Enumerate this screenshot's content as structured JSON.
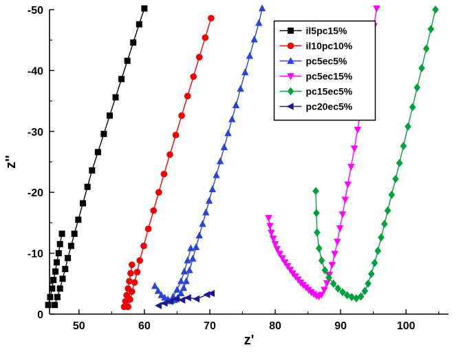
{
  "figure": {
    "background": "#ffffff",
    "axis_color": "#000000"
  },
  "chart_data": {
    "type": "line",
    "title": "",
    "xlabel": "z'",
    "ylabel": "z''",
    "xlim": [
      45.5,
      106.5
    ],
    "ylim": [
      0,
      -50
    ],
    "x_ticks": [
      50,
      60,
      70,
      80,
      90,
      100
    ],
    "y_ticks": [
      0,
      -10,
      -20,
      -30,
      -40,
      -50
    ],
    "x_minor_ticks": [
      55,
      65,
      75,
      85,
      95,
      105
    ],
    "y_minor_ticks": [
      -5,
      -15,
      -25,
      -35,
      -45
    ],
    "grid": false,
    "legend": {
      "position": "top-center-right",
      "border_color": "#000000",
      "background": "#ffffff"
    },
    "series": [
      {
        "name": "il5pc15%",
        "marker": "square",
        "color": "#000000",
        "segments": [
          [
            [
              45.3,
              -1.5
            ],
            [
              45.6,
              -2.8
            ],
            [
              45.9,
              -4.2
            ],
            [
              46.1,
              -5.6
            ],
            [
              46.4,
              -7.0
            ],
            [
              46.6,
              -8.5
            ],
            [
              46.9,
              -10.0
            ],
            [
              47.1,
              -11.5
            ],
            [
              47.4,
              -13.2
            ]
          ],
          [
            [
              46.3,
              -1.5
            ],
            [
              46.7,
              -2.8
            ],
            [
              47.1,
              -4.2
            ],
            [
              47.5,
              -5.8
            ],
            [
              47.9,
              -7.4
            ],
            [
              48.3,
              -9.2
            ],
            [
              48.8,
              -11.2
            ],
            [
              49.3,
              -13.2
            ],
            [
              49.9,
              -15.5
            ],
            [
              50.6,
              -18.2
            ],
            [
              51.3,
              -20.9
            ],
            [
              52.0,
              -23.6
            ],
            [
              52.9,
              -26.6
            ],
            [
              53.8,
              -29.6
            ],
            [
              54.7,
              -32.6
            ],
            [
              55.6,
              -35.6
            ],
            [
              56.5,
              -38.6
            ],
            [
              57.4,
              -41.6
            ],
            [
              58.3,
              -44.6
            ],
            [
              59.2,
              -47.6
            ],
            [
              60.0,
              -50.2
            ]
          ]
        ]
      },
      {
        "name": "il10pc10%",
        "marker": "circle",
        "color": "#ee0000",
        "segments": [
          [
            [
              56.9,
              -1.2
            ],
            [
              57.1,
              -2.1
            ],
            [
              57.3,
              -3.1
            ],
            [
              57.5,
              -4.2
            ],
            [
              57.7,
              -5.4
            ],
            [
              57.9,
              -6.7
            ],
            [
              58.1,
              -8.1
            ]
          ],
          [
            [
              57.5,
              -1.2
            ],
            [
              57.8,
              -2.4
            ],
            [
              58.1,
              -3.7
            ],
            [
              58.5,
              -5.2
            ],
            [
              58.9,
              -6.9
            ],
            [
              59.3,
              -8.8
            ],
            [
              59.9,
              -11.2
            ],
            [
              60.6,
              -14.0
            ],
            [
              61.4,
              -17.0
            ],
            [
              62.2,
              -20.0
            ],
            [
              63.0,
              -23.0
            ],
            [
              63.9,
              -26.2
            ],
            [
              64.8,
              -29.4
            ],
            [
              65.7,
              -32.6
            ],
            [
              66.6,
              -35.8
            ],
            [
              67.5,
              -39.0
            ],
            [
              68.4,
              -42.2
            ],
            [
              69.3,
              -45.4
            ],
            [
              70.2,
              -48.6
            ]
          ]
        ]
      },
      {
        "name": "pc5ec5%",
        "marker": "triangle-up",
        "color": "#2a44d4",
        "segments": [
          [
            [
              61.6,
              -4.6
            ],
            [
              62.1,
              -3.8
            ],
            [
              62.6,
              -3.1
            ],
            [
              63.1,
              -2.7
            ],
            [
              63.6,
              -2.4
            ],
            [
              64.1,
              -2.2
            ],
            [
              64.6,
              -2.3
            ],
            [
              65.1,
              -2.7
            ],
            [
              65.6,
              -3.4
            ],
            [
              66.0,
              -4.3
            ],
            [
              66.4,
              -5.4
            ],
            [
              66.9,
              -7.2
            ],
            [
              67.4,
              -9.1
            ],
            [
              67.9,
              -11.0
            ],
            [
              68.4,
              -12.9
            ],
            [
              68.9,
              -14.8
            ],
            [
              69.4,
              -16.7
            ],
            [
              69.9,
              -18.6
            ],
            [
              70.4,
              -20.5
            ],
            [
              71.0,
              -22.8
            ],
            [
              71.6,
              -25.1
            ],
            [
              72.2,
              -27.4
            ],
            [
              72.8,
              -29.7
            ],
            [
              73.4,
              -32.0
            ],
            [
              74.0,
              -34.3
            ],
            [
              74.7,
              -37.0
            ],
            [
              75.4,
              -39.7
            ],
            [
              76.1,
              -42.4
            ],
            [
              76.8,
              -45.1
            ],
            [
              77.5,
              -47.8
            ],
            [
              78.0,
              -50.2
            ]
          ],
          [
            [
              63.8,
              -2.1
            ],
            [
              64.4,
              -2.9
            ],
            [
              65.0,
              -4.0
            ],
            [
              65.6,
              -5.4
            ],
            [
              66.1,
              -7.0
            ],
            [
              66.6,
              -8.8
            ],
            [
              67.1,
              -10.8
            ]
          ]
        ]
      },
      {
        "name": "pc5ec15%",
        "marker": "triangle-down",
        "color": "#ff00ff",
        "segments": [
          [
            [
              79.0,
              -15.8
            ],
            [
              79.2,
              -14.5
            ],
            [
              79.4,
              -13.4
            ],
            [
              79.7,
              -12.4
            ],
            [
              80.0,
              -11.5
            ],
            [
              80.3,
              -10.7
            ],
            [
              80.7,
              -9.9
            ],
            [
              81.1,
              -9.2
            ],
            [
              81.5,
              -8.5
            ],
            [
              81.9,
              -7.9
            ],
            [
              82.3,
              -7.3
            ],
            [
              82.7,
              -6.7
            ],
            [
              83.1,
              -6.2
            ],
            [
              83.5,
              -5.7
            ],
            [
              83.9,
              -5.2
            ],
            [
              84.3,
              -4.8
            ],
            [
              84.7,
              -4.4
            ],
            [
              85.1,
              -4.0
            ],
            [
              85.5,
              -3.6
            ],
            [
              85.9,
              -3.3
            ],
            [
              86.3,
              -3.0
            ],
            [
              86.7,
              -2.9
            ],
            [
              87.1,
              -3.2
            ],
            [
              87.5,
              -4.0
            ],
            [
              87.9,
              -5.1
            ],
            [
              88.3,
              -6.5
            ],
            [
              88.7,
              -8.1
            ],
            [
              89.1,
              -9.9
            ],
            [
              89.5,
              -11.9
            ],
            [
              89.9,
              -14.1
            ],
            [
              90.3,
              -16.4
            ],
            [
              90.7,
              -18.8
            ],
            [
              91.1,
              -21.3
            ],
            [
              91.6,
              -24.2
            ],
            [
              92.1,
              -27.2
            ],
            [
              92.6,
              -30.3
            ],
            [
              93.1,
              -33.5
            ],
            [
              93.6,
              -36.8
            ],
            [
              94.1,
              -40.2
            ],
            [
              94.6,
              -43.7
            ],
            [
              95.1,
              -47.3
            ],
            [
              95.5,
              -50.2
            ]
          ]
        ]
      },
      {
        "name": "pc15ec5%",
        "marker": "diamond",
        "color": "#00a03c",
        "segments": [
          [
            [
              86.2,
              -20.2
            ],
            [
              86.3,
              -16.6
            ],
            [
              86.4,
              -13.4
            ],
            [
              86.7,
              -10.8
            ],
            [
              87.1,
              -8.8
            ],
            [
              87.6,
              -7.2
            ],
            [
              88.2,
              -6.0
            ],
            [
              88.9,
              -5.0
            ],
            [
              89.6,
              -4.2
            ],
            [
              90.3,
              -3.6
            ],
            [
              91.0,
              -3.1
            ],
            [
              91.7,
              -2.8
            ],
            [
              92.4,
              -2.6
            ],
            [
              93.1,
              -2.9
            ],
            [
              93.7,
              -3.8
            ],
            [
              94.2,
              -5.0
            ],
            [
              94.7,
              -6.6
            ],
            [
              95.2,
              -8.4
            ],
            [
              95.7,
              -10.4
            ],
            [
              96.2,
              -12.6
            ],
            [
              96.7,
              -14.8
            ],
            [
              97.2,
              -17.0
            ],
            [
              97.8,
              -19.6
            ],
            [
              98.4,
              -22.2
            ],
            [
              99.0,
              -24.8
            ],
            [
              99.6,
              -27.6
            ],
            [
              100.3,
              -30.8
            ],
            [
              101.0,
              -34.0
            ],
            [
              101.7,
              -37.2
            ],
            [
              102.4,
              -40.4
            ],
            [
              103.1,
              -43.6
            ],
            [
              103.8,
              -46.8
            ],
            [
              104.5,
              -50.0
            ]
          ]
        ]
      },
      {
        "name": "pc20ec5%",
        "marker": "triangle-left",
        "color": "#1a1a8c",
        "segments": [
          [
            [
              62.2,
              -1.4
            ],
            [
              63.1,
              -1.8
            ],
            [
              64.0,
              -2.1
            ],
            [
              64.9,
              -2.5
            ],
            [
              65.8,
              -2.3
            ],
            [
              66.7,
              -2.7
            ],
            [
              68.0,
              -2.5
            ],
            [
              69.6,
              -3.2
            ],
            [
              70.3,
              -3.4
            ]
          ]
        ]
      }
    ]
  }
}
